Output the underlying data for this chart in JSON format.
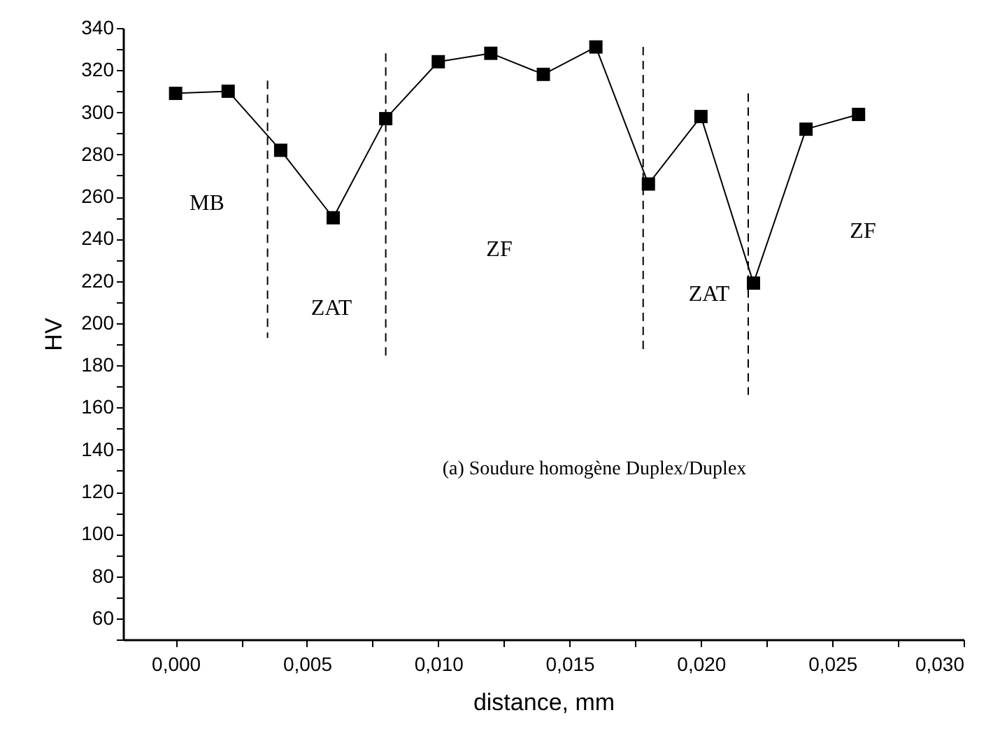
{
  "chart_data": {
    "type": "line",
    "xlabel": "distance, mm",
    "ylabel": "HV",
    "x": [
      0,
      0.002,
      0.004,
      0.006,
      0.008,
      0.01,
      0.012,
      0.014,
      0.016,
      0.018,
      0.02,
      0.022,
      0.024,
      0.026
    ],
    "series": [
      {
        "color": "#000000",
        "values": [
          309,
          310,
          282,
          250,
          297,
          324,
          328,
          318,
          331,
          266,
          298,
          219,
          292,
          299
        ]
      },
      {
        "color": "#000000",
        "x": [
          0.0035,
          0.0035
        ],
        "values": [
          315,
          193
        ],
        "marker": "none",
        "line_style": "dashed"
      },
      {
        "color": "#000000",
        "x": [
          0.008,
          0.008
        ],
        "values": [
          328,
          184
        ],
        "marker": "none",
        "line_style": "dashed"
      },
      {
        "color": "#000000",
        "x": [
          0.0178,
          0.0178
        ],
        "values": [
          331,
          187
        ],
        "marker": "none",
        "line_style": "dashed"
      },
      {
        "color": "#000000",
        "x": [
          0.0218,
          0.0218
        ],
        "values": [
          309,
          166
        ],
        "marker": "none",
        "line_style": "dashed"
      }
    ],
    "marker": "square",
    "line_style": "solid",
    "grid": false,
    "xlim": [
      -0.002,
      0.03
    ],
    "xticks": [
      {
        "value": 0,
        "label": "0,000"
      },
      {
        "value": 0.0025,
        "label": null
      },
      {
        "value": 0.005,
        "label": "0,005"
      },
      {
        "value": 0.0075,
        "label": null
      },
      {
        "value": 0.01,
        "label": "0,010"
      },
      {
        "value": 0.0125,
        "label": null
      },
      {
        "value": 0.015,
        "label": "0,015"
      },
      {
        "value": 0.0175,
        "label": null
      },
      {
        "value": 0.02,
        "label": "0,020"
      },
      {
        "value": 0.0225,
        "label": null
      },
      {
        "value": 0.025,
        "label": "0,025"
      },
      {
        "value": 0.0275,
        "label": null
      },
      {
        "value": 0.03,
        "label": "0,030"
      }
    ],
    "ylim": [
      50,
      340
    ],
    "yticks": [
      {
        "value": 50,
        "label": null
      },
      60,
      {
        "value": 70,
        "label": null
      },
      80,
      {
        "value": 90,
        "label": null
      },
      100,
      {
        "value": 110,
        "label": null
      },
      120,
      {
        "value": 130,
        "label": null
      },
      140,
      {
        "value": 150,
        "label": null
      },
      160,
      {
        "value": 170,
        "label": null
      },
      180,
      {
        "value": 190,
        "label": null
      },
      200,
      {
        "value": 210,
        "label": null
      },
      220,
      {
        "value": 230,
        "label": null
      },
      240,
      {
        "value": 250,
        "label": null
      },
      260,
      {
        "value": 270,
        "label": null
      },
      280,
      {
        "value": 290,
        "label": null
      },
      300,
      {
        "value": 310,
        "label": null
      },
      320,
      {
        "value": 330,
        "label": null
      },
      340
    ],
    "annotations": [
      "MB",
      "ZAT",
      "ZF",
      "ZAT",
      "ZF",
      "(a) Soudure homogène Duplex/Duplex"
    ]
  }
}
